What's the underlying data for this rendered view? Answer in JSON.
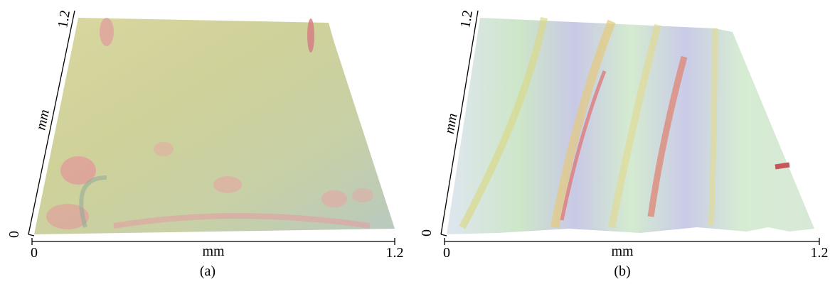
{
  "panels": [
    {
      "label": "(a)",
      "x_axis": {
        "start": "0",
        "end": "1.2",
        "title": "mm"
      },
      "y_axis": {
        "start": "0",
        "end": "1.2",
        "title": "mm"
      }
    },
    {
      "label": "(b)",
      "x_axis": {
        "start": "0",
        "end": "1.2",
        "title": "mm"
      },
      "y_axis": {
        "start": "0",
        "end": "1.2",
        "title": "mm"
      }
    }
  ]
}
